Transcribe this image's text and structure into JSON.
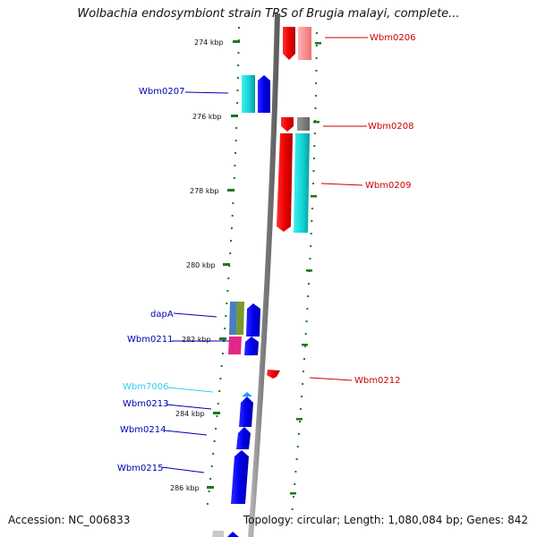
{
  "title": "Wolbachia endosymbiont strain TRS of Brugia malayi, complete...",
  "footer": {
    "accession": "Accession: NC_006833",
    "topology": "Topology: circular; Length: 1,080,084 bp; Genes: 842"
  },
  "scale_labels": [
    "274 kbp",
    "276 kbp",
    "278 kbp",
    "280 kbp",
    "282 kbp",
    "284 kbp",
    "286 kbp"
  ],
  "gene_labels": {
    "wbm0206": "Wbm0206",
    "wbm0207": "Wbm0207",
    "wbm0208": "Wbm0208",
    "wbm0209": "Wbm0209",
    "dapA": "dapA",
    "wbm0211": "Wbm0211",
    "wbm0212": "Wbm0212",
    "wbm7006": "Wbm7006",
    "wbm0213": "Wbm0213",
    "wbm0214": "Wbm0214",
    "wbm0215": "Wbm0215"
  },
  "colors": {
    "forward_label": "#0000b3",
    "reverse_label": "#cc0000",
    "rna_label": "#33ccee",
    "tick": "#1a7a1a",
    "backbone": "#8c8c8c"
  }
}
